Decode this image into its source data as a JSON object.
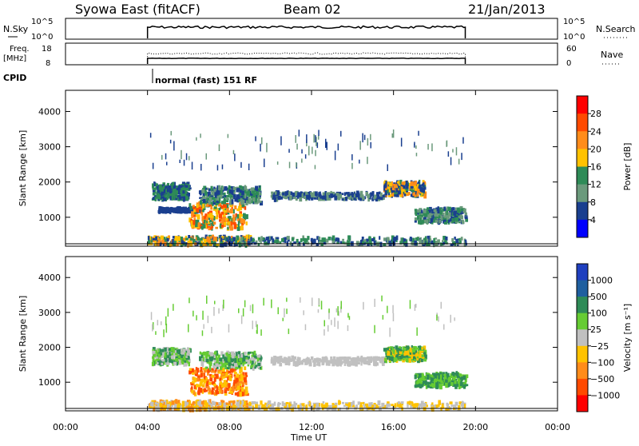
{
  "header": {
    "title": "Syowa East (fitACF)",
    "beam": "Beam 02",
    "date": "21/Jan/2013"
  },
  "strip_labels": {
    "nsky": "N.Sky",
    "nsearch": "N.Search",
    "freq": "Freq.",
    "freq_unit": "[MHz]",
    "nave": "Nave",
    "cpid": "CPID"
  },
  "strip_ticks": {
    "nsky_left": [
      "10^5",
      "10^0"
    ],
    "nsky_right": [
      "10^5",
      "10^0"
    ],
    "freq_left": [
      "18",
      "8"
    ],
    "nave_right": [
      "60",
      "0"
    ]
  },
  "cpid_text": "normal (fast) 151 RF",
  "xaxis": {
    "label": "Time UT",
    "ticks": [
      "00:00",
      "04:00",
      "08:00",
      "12:00",
      "16:00",
      "20:00",
      "00:00"
    ]
  },
  "chart_data": [
    {
      "type": "heatmap",
      "name": "power",
      "ylabel": "Slant Range [km]",
      "yticks": [
        1000,
        2000,
        3000,
        4000
      ],
      "ylim": [
        180,
        4600
      ],
      "xlim_hours": [
        0,
        24
      ],
      "colorbar": {
        "label": "Power [dB]",
        "ticks": [
          "28",
          "24",
          "20",
          "16",
          "12",
          "8",
          "4"
        ],
        "colors": [
          "#ff0000",
          "#ff4a00",
          "#ff8c1a",
          "#ffc200",
          "#2e8b57",
          "#6b9a7c",
          "#1a3f8f",
          "#0000ff"
        ]
      },
      "regions": [
        {
          "t": [
            4.0,
            9.0
          ],
          "r": [
            200,
            450
          ],
          "colors": [
            "#1a3f8f",
            "#2e8b57",
            "#ffc200",
            "#ff8c1a"
          ]
        },
        {
          "t": [
            4.2,
            6.0
          ],
          "r": [
            1500,
            1950
          ],
          "colors": [
            "#1a3f8f",
            "#2e8b57"
          ]
        },
        {
          "t": [
            4.5,
            6.5
          ],
          "r": [
            1150,
            1250
          ],
          "colors": [
            "#1a3f8f"
          ]
        },
        {
          "t": [
            6.0,
            8.8
          ],
          "r": [
            650,
            1400
          ],
          "colors": [
            "#ff8c1a",
            "#ff4a00",
            "#ffc200",
            "#2e8b57"
          ]
        },
        {
          "t": [
            6.5,
            9.5
          ],
          "r": [
            1400,
            1850
          ],
          "colors": [
            "#2e8b57",
            "#1a3f8f",
            "#6b9a7c"
          ]
        },
        {
          "t": [
            8.0,
            19.5
          ],
          "r": [
            220,
            420
          ],
          "colors": [
            "#1a3f8f",
            "#2e8b57",
            "#6b9a7c"
          ]
        },
        {
          "t": [
            10.0,
            15.5
          ],
          "r": [
            1500,
            1700
          ],
          "colors": [
            "#1a3f8f",
            "#6b9a7c"
          ]
        },
        {
          "t": [
            15.5,
            17.5
          ],
          "r": [
            1600,
            2000
          ],
          "colors": [
            "#2e8b57",
            "#ffc200",
            "#ff8c1a",
            "#1a3f8f"
          ]
        },
        {
          "t": [
            17.0,
            19.5
          ],
          "r": [
            850,
            1250
          ],
          "colors": [
            "#1a3f8f",
            "#2e8b57",
            "#6b9a7c"
          ]
        },
        {
          "t": [
            4.0,
            19.5
          ],
          "r": [
            2400,
            3400
          ],
          "colors": [
            "#1a3f8f",
            "#6b9a7c"
          ],
          "sparse": true
        }
      ]
    },
    {
      "type": "heatmap",
      "name": "velocity",
      "ylabel": "Slant Range [km]",
      "yticks": [
        1000,
        2000,
        3000,
        4000
      ],
      "ylim": [
        180,
        4600
      ],
      "xlim_hours": [
        0,
        24
      ],
      "colorbar": {
        "label": "Velocity [m s⁻¹]",
        "ticks": [
          "1000",
          "500",
          "100",
          "25",
          "−25",
          "−100",
          "−500",
          "−1000"
        ],
        "colors": [
          "#1f3fbf",
          "#1f5f9f",
          "#2e8b57",
          "#66cc33",
          "#c0c0c0",
          "#ffc200",
          "#ff8c1a",
          "#ff4a00",
          "#ff0000"
        ]
      },
      "regions": [
        {
          "t": [
            4.0,
            9.0
          ],
          "r": [
            200,
            450
          ],
          "colors": [
            "#ffc200",
            "#ff8c1a",
            "#c0c0c0"
          ]
        },
        {
          "t": [
            4.2,
            6.0
          ],
          "r": [
            1500,
            1950
          ],
          "colors": [
            "#c0c0c0",
            "#2e8b57",
            "#66cc33"
          ]
        },
        {
          "t": [
            6.0,
            8.8
          ],
          "r": [
            650,
            1400
          ],
          "colors": [
            "#ff8c1a",
            "#ff4a00",
            "#ffc200"
          ]
        },
        {
          "t": [
            6.5,
            9.5
          ],
          "r": [
            1400,
            1850
          ],
          "colors": [
            "#66cc33",
            "#2e8b57",
            "#c0c0c0"
          ]
        },
        {
          "t": [
            8.0,
            19.5
          ],
          "r": [
            220,
            420
          ],
          "colors": [
            "#c0c0c0",
            "#ffc200"
          ]
        },
        {
          "t": [
            10.0,
            15.5
          ],
          "r": [
            1500,
            1700
          ],
          "colors": [
            "#c0c0c0"
          ]
        },
        {
          "t": [
            15.5,
            17.5
          ],
          "r": [
            1600,
            2000
          ],
          "colors": [
            "#ffc200",
            "#66cc33",
            "#2e8b57"
          ]
        },
        {
          "t": [
            17.0,
            19.5
          ],
          "r": [
            850,
            1250
          ],
          "colors": [
            "#66cc33",
            "#2e8b57"
          ]
        },
        {
          "t": [
            4.0,
            19.5
          ],
          "r": [
            2400,
            3400
          ],
          "colors": [
            "#c0c0c0",
            "#66cc33"
          ],
          "sparse": true
        }
      ]
    }
  ]
}
